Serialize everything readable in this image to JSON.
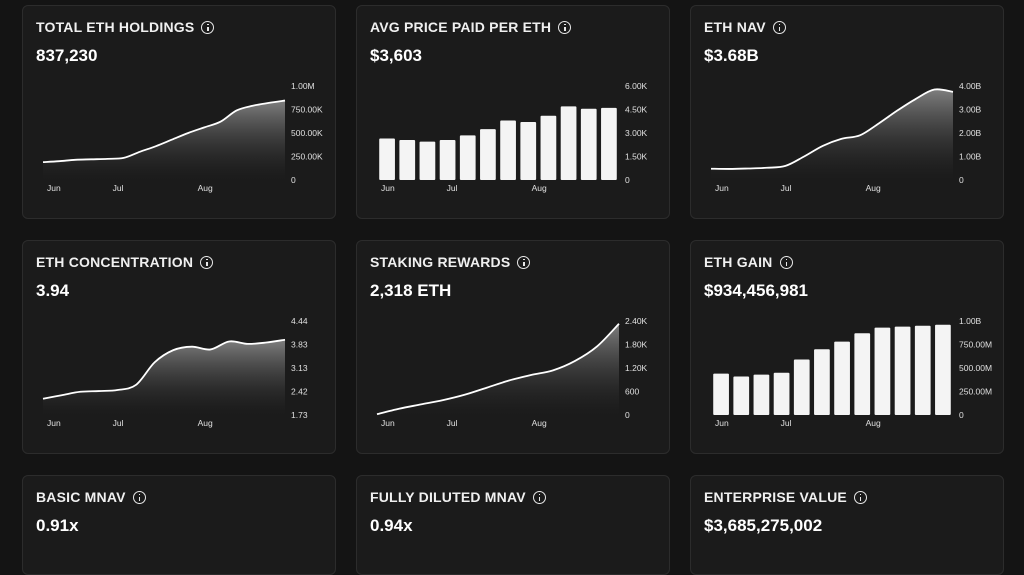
{
  "cards": [
    {
      "title": "TOTAL ETH HOLDINGS",
      "value": "837,230",
      "chart_data": {
        "type": "area",
        "x_ticks": [
          "Jun",
          "Jul",
          "Aug"
        ],
        "y_ticks": [
          "1.00M",
          "750.00K",
          "500.00K",
          "250.00K",
          "0"
        ],
        "ylim": [
          0,
          1000000
        ],
        "values": [
          190000,
          200000,
          215000,
          220000,
          225000,
          235000,
          300000,
          360000,
          430000,
          500000,
          560000,
          620000,
          740000,
          790000,
          820000,
          845000
        ]
      }
    },
    {
      "title": "AVG PRICE PAID PER ETH",
      "value": "$3,603",
      "chart_data": {
        "type": "bar",
        "x_ticks": [
          "Jun",
          "Jul",
          "Aug"
        ],
        "y_ticks": [
          "6.00K",
          "4.50K",
          "3.00K",
          "1.50K",
          "0"
        ],
        "ylim": [
          0,
          6000
        ],
        "values": [
          2650,
          2550,
          2450,
          2550,
          2850,
          3250,
          3800,
          3700,
          4100,
          4700,
          4550,
          4600
        ]
      }
    },
    {
      "title": "ETH NAV",
      "value": "$3.68B",
      "chart_data": {
        "type": "area",
        "x_ticks": [
          "Jun",
          "Jul",
          "Aug"
        ],
        "y_ticks": [
          "4.00B",
          "3.00B",
          "2.00B",
          "1.00B",
          "0"
        ],
        "ylim": [
          0,
          4000000000
        ],
        "values": [
          480000000,
          470000000,
          490000000,
          520000000,
          600000000,
          1000000000,
          1450000000,
          1750000000,
          1900000000,
          2400000000,
          2950000000,
          3450000000,
          3850000000,
          3750000000
        ]
      }
    },
    {
      "title": "ETH CONCENTRATION",
      "value": "3.94",
      "chart_data": {
        "type": "area",
        "x_ticks": [
          "Jun",
          "Jul",
          "Aug"
        ],
        "y_ticks": [
          "4.44",
          "3.83",
          "3.13",
          "2.42",
          "1.73"
        ],
        "ylim": [
          1.73,
          4.44
        ],
        "values": [
          2.2,
          2.3,
          2.4,
          2.42,
          2.45,
          2.6,
          3.25,
          3.6,
          3.7,
          3.62,
          3.85,
          3.78,
          3.82,
          3.9
        ]
      }
    },
    {
      "title": "STAKING REWARDS",
      "value": "2,318 ETH",
      "chart_data": {
        "type": "area",
        "x_ticks": [
          "Jun",
          "Jul",
          "Aug"
        ],
        "y_ticks": [
          "2.40K",
          "1.80K",
          "1.20K",
          "600",
          "0"
        ],
        "ylim": [
          0,
          2400
        ],
        "values": [
          20,
          160,
          270,
          380,
          520,
          700,
          880,
          1020,
          1140,
          1380,
          1750,
          2330
        ]
      }
    },
    {
      "title": "ETH GAIN",
      "value": "$934,456,981",
      "chart_data": {
        "type": "bar",
        "x_ticks": [
          "Jun",
          "Jul",
          "Aug"
        ],
        "y_ticks": [
          "1.00B",
          "750.00M",
          "500.00M",
          "250.00M",
          "0"
        ],
        "ylim": [
          0,
          1000000000
        ],
        "values": [
          440000000,
          410000000,
          430000000,
          450000000,
          590000000,
          700000000,
          780000000,
          870000000,
          930000000,
          940000000,
          950000000,
          960000000
        ]
      }
    },
    {
      "title": "BASIC MNAV",
      "value": "0.91x"
    },
    {
      "title": "FULLY DILUTED MNAV",
      "value": "0.94x"
    },
    {
      "title": "ENTERPRISE VALUE",
      "value": "$3,685,275,002"
    }
  ]
}
